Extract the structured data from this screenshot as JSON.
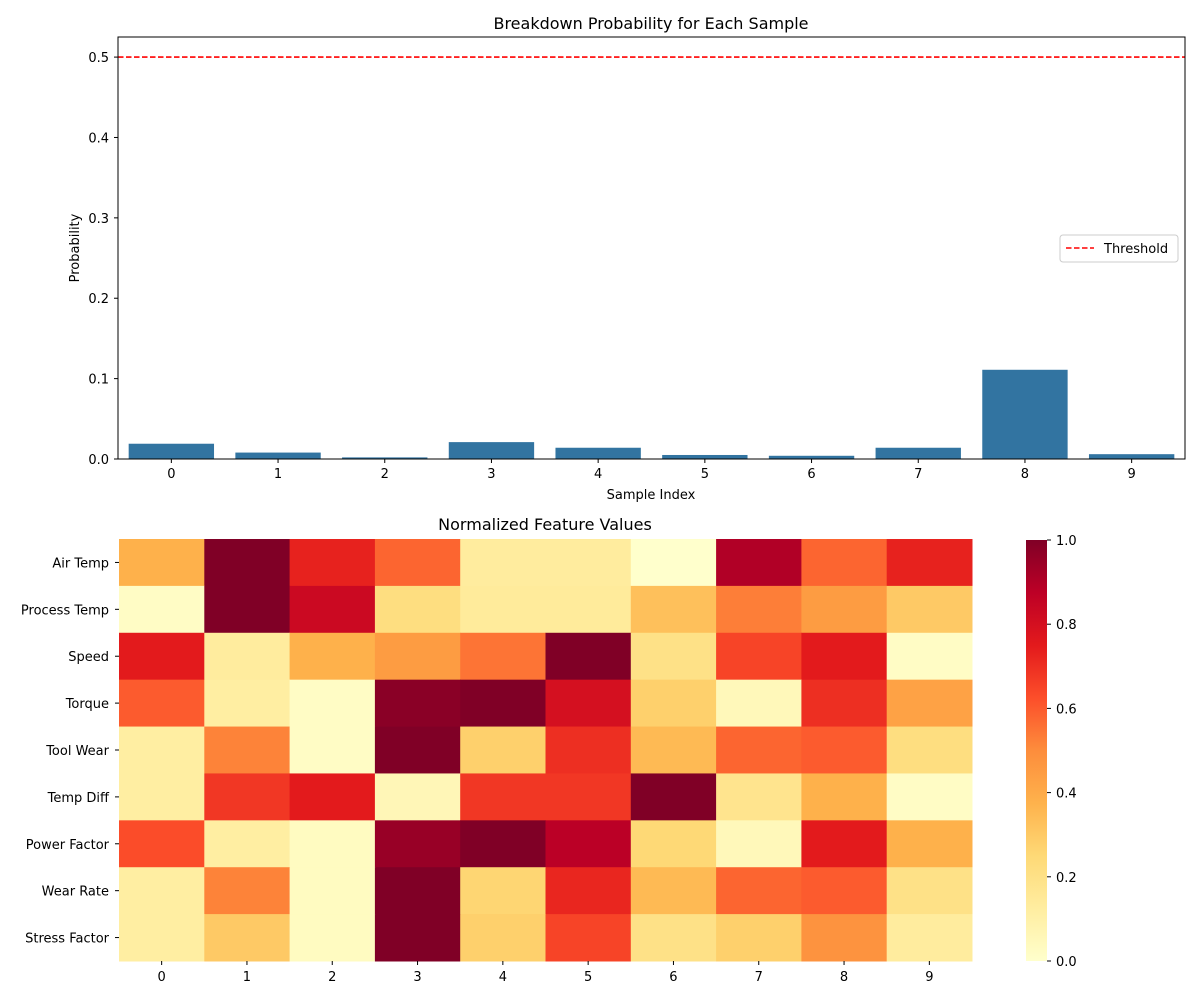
{
  "colors": {
    "bar": "#3274a1",
    "threshold": "#ff0000",
    "axis": "#000000",
    "legend_border": "#cccccc",
    "colormap": "YlOrRd"
  },
  "chart_data": [
    {
      "type": "bar",
      "title": "Breakdown Probability for Each Sample",
      "xlabel": "Sample Index",
      "ylabel": "Probability",
      "categories": [
        "0",
        "1",
        "2",
        "3",
        "4",
        "5",
        "6",
        "7",
        "8",
        "9"
      ],
      "values": [
        0.019,
        0.008,
        0.002,
        0.021,
        0.014,
        0.005,
        0.004,
        0.014,
        0.111,
        0.006
      ],
      "ylim": [
        0,
        0.525
      ],
      "yticks": [
        0.0,
        0.1,
        0.2,
        0.3,
        0.4,
        0.5
      ],
      "ytick_labels": [
        "0.0",
        "0.1",
        "0.2",
        "0.3",
        "0.4",
        "0.5"
      ],
      "threshold": {
        "value": 0.5,
        "label": "Threshold",
        "style": "dashed"
      },
      "legend": {
        "position": "right",
        "entries": [
          "Threshold"
        ]
      },
      "grid": false
    },
    {
      "type": "heatmap",
      "title": "Normalized Feature Values",
      "x_categories": [
        "0",
        "1",
        "2",
        "3",
        "4",
        "5",
        "6",
        "7",
        "8",
        "9"
      ],
      "y_categories": [
        "Air Temp",
        "Process Temp",
        "Speed",
        "Torque",
        "Tool Wear",
        "Temp Diff",
        "Power Factor",
        "Wear Rate",
        "Stress Factor"
      ],
      "values": [
        [
          0.38,
          1.0,
          0.73,
          0.58,
          0.13,
          0.13,
          0.0,
          0.9,
          0.58,
          0.73
        ],
        [
          0.02,
          1.0,
          0.83,
          0.22,
          0.14,
          0.14,
          0.33,
          0.53,
          0.45,
          0.3
        ],
        [
          0.75,
          0.13,
          0.38,
          0.45,
          0.55,
          1.0,
          0.2,
          0.65,
          0.75,
          0.02
        ],
        [
          0.6,
          0.12,
          0.02,
          0.98,
          1.0,
          0.8,
          0.28,
          0.05,
          0.7,
          0.43
        ],
        [
          0.12,
          0.52,
          0.02,
          1.0,
          0.28,
          0.7,
          0.35,
          0.58,
          0.6,
          0.22
        ],
        [
          0.12,
          0.68,
          0.75,
          0.06,
          0.68,
          0.68,
          1.0,
          0.18,
          0.38,
          0.02
        ],
        [
          0.63,
          0.12,
          0.03,
          0.95,
          1.0,
          0.88,
          0.25,
          0.05,
          0.75,
          0.38
        ],
        [
          0.12,
          0.52,
          0.03,
          1.0,
          0.26,
          0.72,
          0.35,
          0.58,
          0.6,
          0.2
        ],
        [
          0.12,
          0.3,
          0.03,
          1.0,
          0.28,
          0.65,
          0.2,
          0.28,
          0.48,
          0.13
        ]
      ],
      "colorbar": {
        "range": [
          0.0,
          1.0
        ],
        "ticks": [
          0.0,
          0.2,
          0.4,
          0.6,
          0.8,
          1.0
        ],
        "tick_labels": [
          "0.0",
          "0.2",
          "0.4",
          "0.6",
          "0.8",
          "1.0"
        ]
      }
    }
  ]
}
